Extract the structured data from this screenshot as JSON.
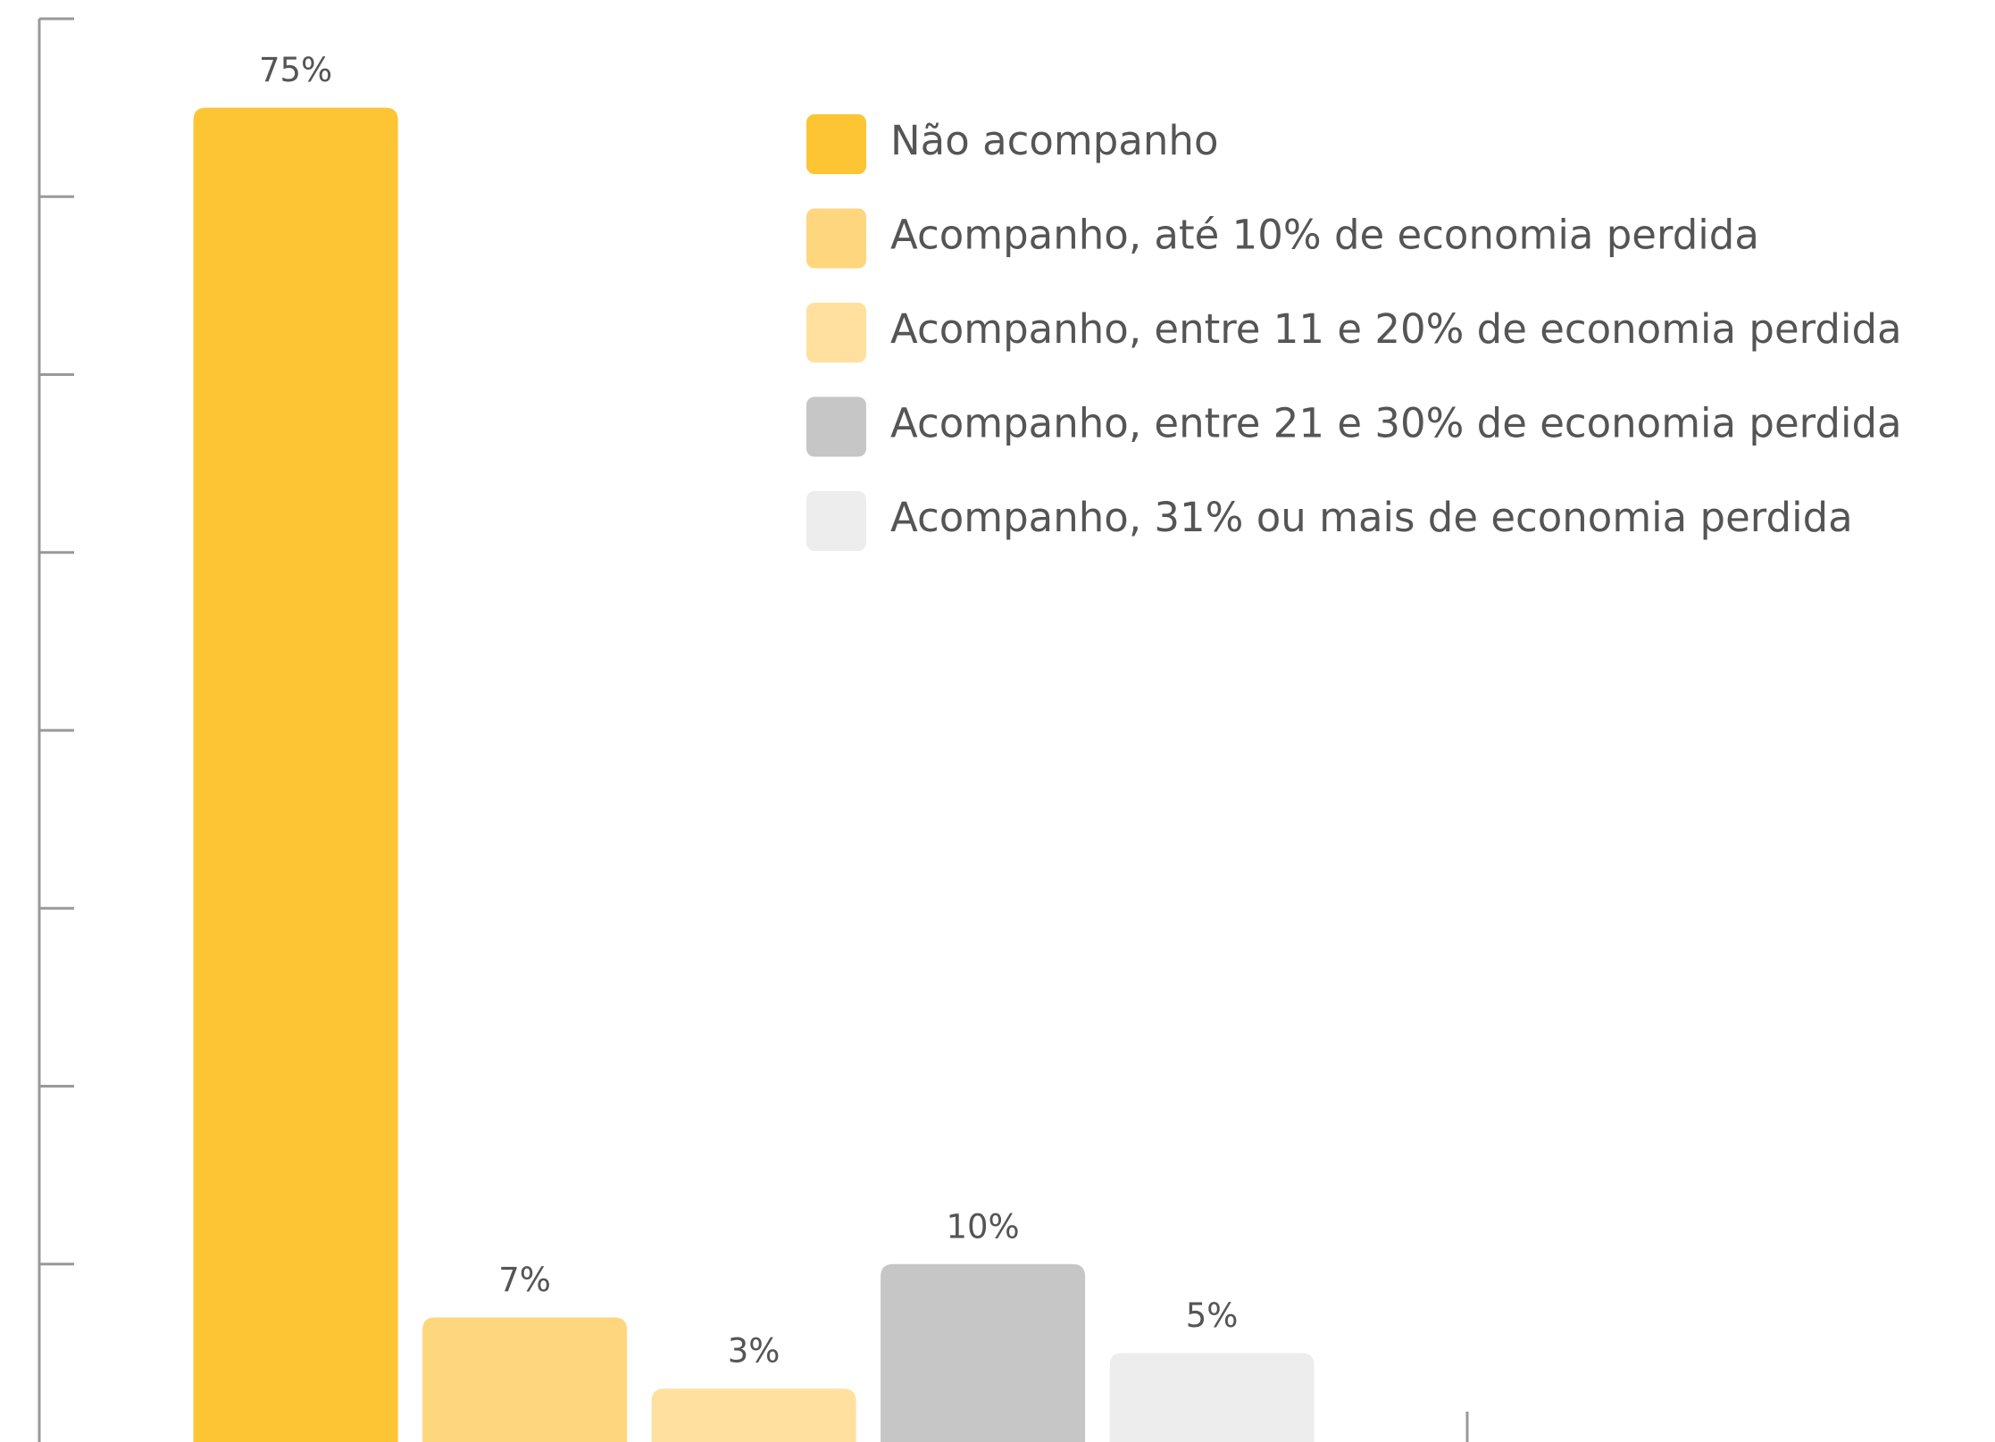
{
  "chart_data": {
    "type": "bar",
    "series": [
      {
        "name": "Não acompanho",
        "color": "#FDC433",
        "values": [
          75
        ],
        "value_labels": [
          "75%"
        ]
      },
      {
        "name": "Acompanho, até 10% de economia perdida",
        "color": "#FED67D",
        "values": [
          7
        ],
        "value_labels": [
          "7%"
        ]
      },
      {
        "name": "Acompanho, entre 11 e 20% de economia perdida",
        "color": "#FFE09F",
        "values": [
          3
        ],
        "value_labels": [
          "3%"
        ]
      },
      {
        "name": "Acompanho, entre 21 e 30% de economia perdida",
        "color": "#C6C6C6",
        "values": [
          10
        ],
        "value_labels": [
          "10%"
        ]
      },
      {
        "name": "Acompanho, 31% ou mais de economia perdida",
        "color": "#EDEDED",
        "values": [
          5
        ],
        "value_labels": [
          "5%"
        ]
      }
    ],
    "ylim": [
      0,
      80
    ],
    "yticks": [
      10,
      20,
      30,
      40,
      50,
      60,
      70,
      80
    ],
    "legend": "upper right"
  }
}
